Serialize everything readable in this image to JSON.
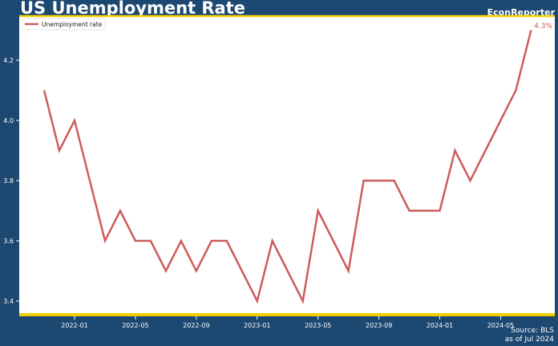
{
  "header": {
    "title": "US Unemployment Rate",
    "brand": "EconReporter"
  },
  "footer": {
    "source": "Source: BLS",
    "asof": "as of Jul 2024"
  },
  "colors": {
    "background": "#1c4872",
    "accent": "#f5d000",
    "line": "#cd5c5c"
  },
  "chart_data": {
    "type": "line",
    "title": "US Unemployment Rate",
    "xlabel": "",
    "ylabel": "",
    "grid": false,
    "legend": "top-left",
    "ylim": [
      3.35,
      4.35
    ],
    "yticks": [
      "3.4",
      "3.6",
      "3.8",
      "4.0",
      "4.2"
    ],
    "xticks": [
      "2022-01",
      "2022-05",
      "2022-09",
      "2023-01",
      "2023-05",
      "2023-09",
      "2024-01",
      "2024-05"
    ],
    "annotation": "4.3%",
    "series": [
      {
        "name": "Unemployment rate",
        "x": [
          "2021-11",
          "2021-12",
          "2022-01",
          "2022-02",
          "2022-03",
          "2022-04",
          "2022-05",
          "2022-06",
          "2022-07",
          "2022-08",
          "2022-09",
          "2022-10",
          "2022-11",
          "2022-12",
          "2023-01",
          "2023-02",
          "2023-03",
          "2023-04",
          "2023-05",
          "2023-06",
          "2023-07",
          "2023-08",
          "2023-09",
          "2023-10",
          "2023-11",
          "2023-12",
          "2024-01",
          "2024-02",
          "2024-03",
          "2024-04",
          "2024-05",
          "2024-06",
          "2024-07"
        ],
        "values": [
          4.1,
          3.9,
          4.0,
          3.8,
          3.6,
          3.7,
          3.6,
          3.6,
          3.5,
          3.6,
          3.5,
          3.6,
          3.6,
          3.5,
          3.4,
          3.6,
          3.5,
          3.4,
          3.7,
          3.6,
          3.5,
          3.8,
          3.8,
          3.8,
          3.7,
          3.7,
          3.7,
          3.9,
          3.8,
          3.9,
          4.0,
          4.1,
          4.3
        ]
      }
    ]
  }
}
